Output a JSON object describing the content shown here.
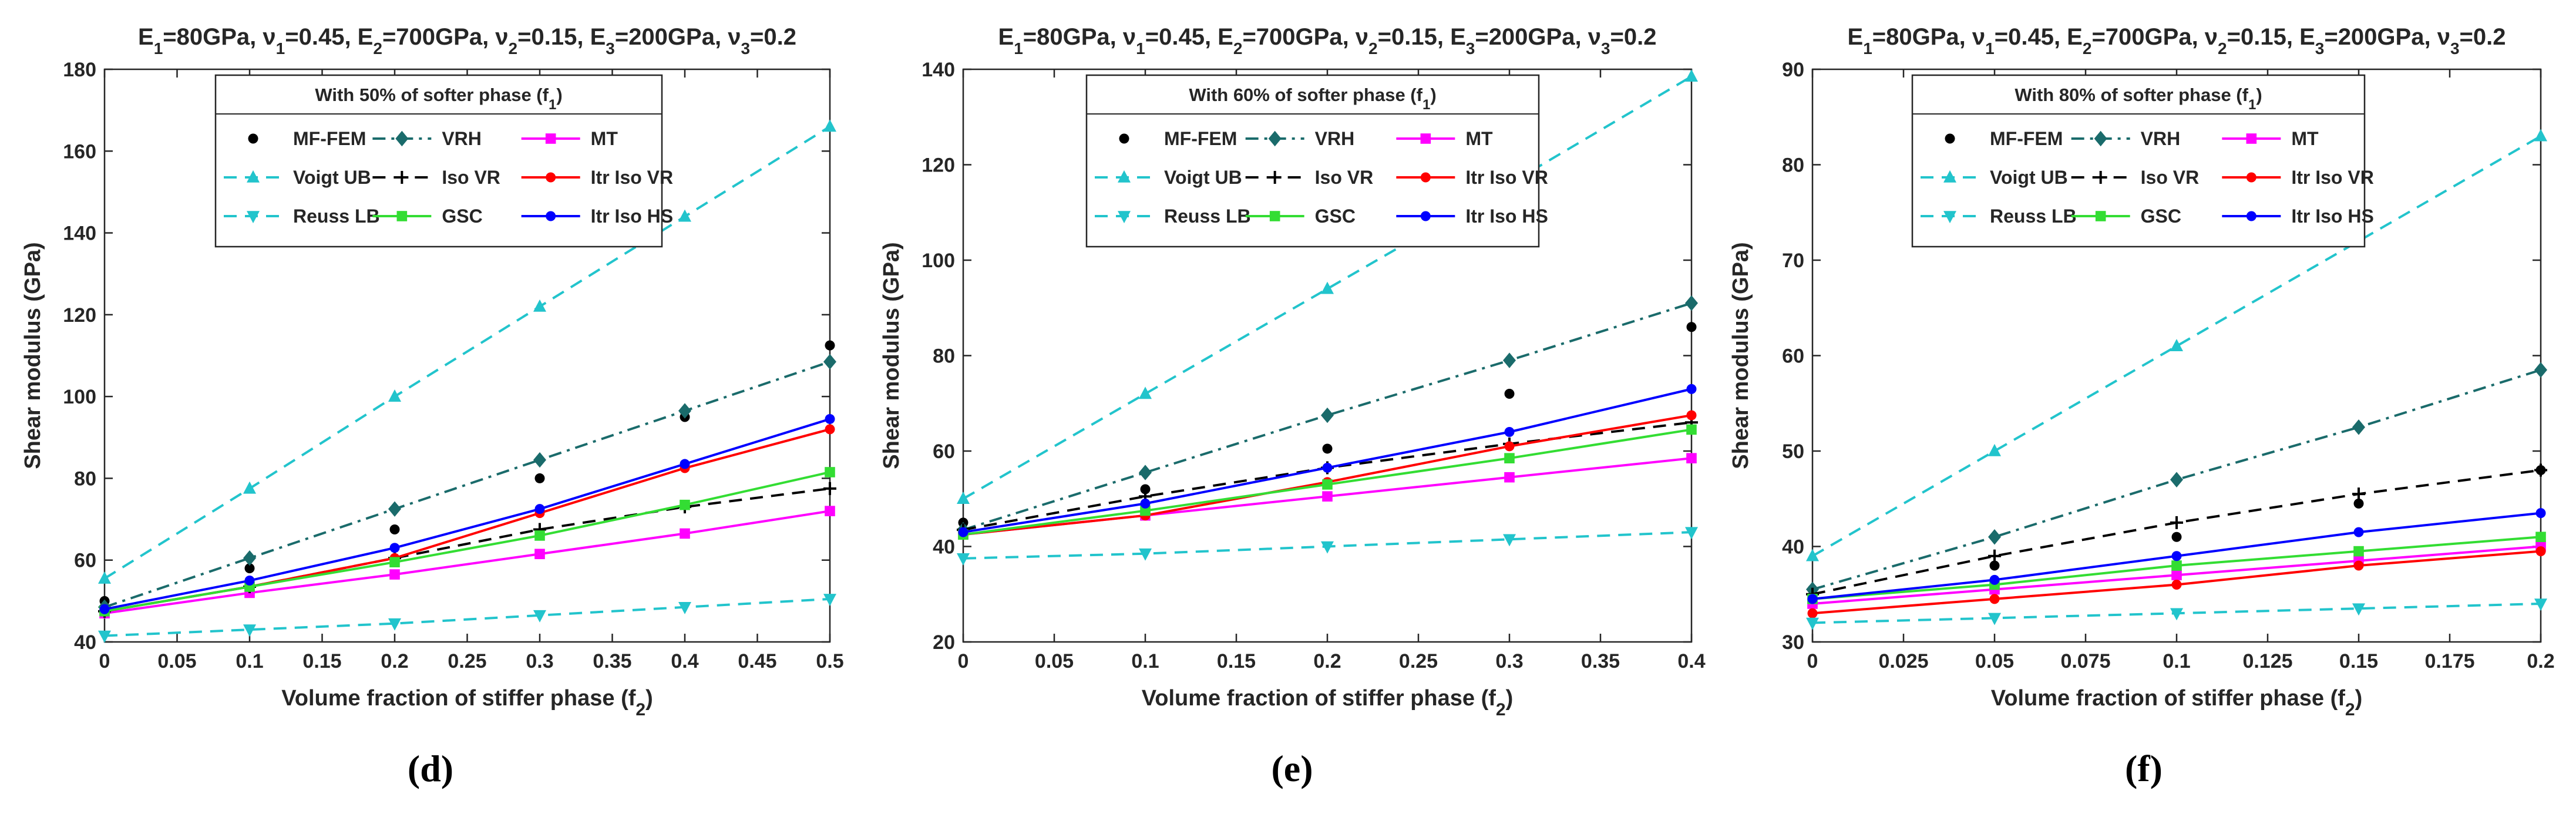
{
  "panel_labels": [
    "(d)",
    "(e)",
    "(f)"
  ],
  "chart_data": [
    {
      "type": "line",
      "panel_label": "(d)",
      "header": "E1=80GPa, ν1=0.45,  E2=700GPa, ν2=0.15,  E3=200GPa, ν3=0.2",
      "legend_title": "With 50% of softer phase (f1)",
      "xlabel": "Volume fraction of stiffer phase (f2)",
      "ylabel": "Shear modulus (GPa)",
      "xlim": [
        0,
        0.5
      ],
      "ylim": [
        40,
        180
      ],
      "xticks": [
        0,
        0.05,
        0.1,
        0.15,
        0.2,
        0.25,
        0.3,
        0.35,
        0.4,
        0.45,
        0.5
      ],
      "xtick_labels": [
        "0",
        "0.05",
        "0.1",
        "0.15",
        "0.2",
        "0.25",
        "0.3",
        "0.35",
        "0.4",
        "0.45",
        "0.5"
      ],
      "yticks": [
        40,
        60,
        80,
        100,
        120,
        140,
        160,
        180
      ],
      "ytick_labels": [
        "40",
        "60",
        "80",
        "100",
        "120",
        "140",
        "160",
        "180"
      ],
      "x": [
        0,
        0.1,
        0.2,
        0.3,
        0.4,
        0.5
      ],
      "series": [
        {
          "name": "MF-FEM",
          "values": [
            50,
            58,
            67.5,
            80,
            95,
            112.5
          ],
          "color": "#000000",
          "marker": "dot",
          "dash": "none"
        },
        {
          "name": "VRH",
          "values": [
            48.5,
            60.5,
            72.5,
            84.5,
            96.5,
            108.5
          ],
          "color": "#1a6b6b",
          "marker": "diamond",
          "dash": "dashdot"
        },
        {
          "name": "MT",
          "values": [
            47,
            52,
            56.5,
            61.5,
            66.5,
            72
          ],
          "color": "#ff00ff",
          "marker": "square",
          "dash": "none"
        },
        {
          "name": "Voigt UB",
          "values": [
            55.5,
            77.5,
            100,
            122,
            144,
            166
          ],
          "color": "#22c4cc",
          "marker": "tri-up",
          "dash": "dash"
        },
        {
          "name": "Iso VR",
          "values": [
            47.5,
            53.5,
            60.5,
            67.5,
            73,
            77.5
          ],
          "color": "#000000",
          "marker": "plus",
          "dash": "dash"
        },
        {
          "name": "Itr Iso VR",
          "values": [
            47.5,
            53.5,
            60.5,
            71.5,
            82.5,
            92
          ],
          "color": "#ff0000",
          "marker": "dot",
          "dash": "none"
        },
        {
          "name": "Reuss LB",
          "values": [
            41.5,
            43,
            44.5,
            46.5,
            48.5,
            50.5
          ],
          "color": "#22c4cc",
          "marker": "tri-down",
          "dash": "dash"
        },
        {
          "name": "GSC",
          "values": [
            47.5,
            53.5,
            59.5,
            66,
            73.5,
            81.5
          ],
          "color": "#33dd33",
          "marker": "square",
          "dash": "none"
        },
        {
          "name": "Itr Iso HS",
          "values": [
            48,
            55,
            63,
            72.5,
            83.5,
            94.5
          ],
          "color": "#0000ff",
          "marker": "dot",
          "dash": "none"
        }
      ]
    },
    {
      "type": "line",
      "panel_label": "(e)",
      "header": "E1=80GPa, ν1=0.45,  E2=700GPa, ν2=0.15,  E3=200GPa, ν3=0.2",
      "legend_title": "With 60% of softer phase (f1)",
      "xlabel": "Volume fraction of stiffer phase (f2)",
      "ylabel": "Shear modulus (GPa)",
      "xlim": [
        0,
        0.4
      ],
      "ylim": [
        20,
        140
      ],
      "xticks": [
        0,
        0.05,
        0.1,
        0.15,
        0.2,
        0.25,
        0.3,
        0.35,
        0.4
      ],
      "xtick_labels": [
        "0",
        "0.05",
        "0.1",
        "0.15",
        "0.2",
        "0.25",
        "0.3",
        "0.35",
        "0.4"
      ],
      "yticks": [
        20,
        40,
        60,
        80,
        100,
        120,
        140
      ],
      "ytick_labels": [
        "20",
        "40",
        "60",
        "80",
        "100",
        "120",
        "140"
      ],
      "x": [
        0,
        0.1,
        0.2,
        0.3,
        0.4
      ],
      "series": [
        {
          "name": "MF-FEM",
          "values": [
            45,
            52,
            60.5,
            72,
            86
          ],
          "color": "#000000",
          "marker": "dot",
          "dash": "none"
        },
        {
          "name": "VRH",
          "values": [
            43.5,
            55.5,
            67.5,
            79,
            91
          ],
          "color": "#1a6b6b",
          "marker": "diamond",
          "dash": "dashdot"
        },
        {
          "name": "MT",
          "values": [
            42.5,
            46.5,
            50.5,
            54.5,
            58.5
          ],
          "color": "#ff00ff",
          "marker": "square",
          "dash": "none"
        },
        {
          "name": "Voigt UB",
          "values": [
            50,
            72,
            94,
            116,
            138.5
          ],
          "color": "#22c4cc",
          "marker": "tri-up",
          "dash": "dash"
        },
        {
          "name": "Iso VR",
          "values": [
            43.5,
            50.5,
            56.5,
            61.5,
            66
          ],
          "color": "#000000",
          "marker": "plus",
          "dash": "dash"
        },
        {
          "name": "Itr Iso VR",
          "values": [
            42.5,
            46.5,
            53.5,
            61,
            67.5
          ],
          "color": "#ff0000",
          "marker": "dot",
          "dash": "none"
        },
        {
          "name": "Reuss LB",
          "values": [
            37.5,
            38.5,
            40,
            41.5,
            43
          ],
          "color": "#22c4cc",
          "marker": "tri-down",
          "dash": "dash"
        },
        {
          "name": "GSC",
          "values": [
            42.5,
            47.5,
            53,
            58.5,
            64.5
          ],
          "color": "#33dd33",
          "marker": "square",
          "dash": "none"
        },
        {
          "name": "Itr Iso HS",
          "values": [
            43,
            49,
            56.5,
            64,
            73
          ],
          "color": "#0000ff",
          "marker": "dot",
          "dash": "none"
        }
      ]
    },
    {
      "type": "line",
      "panel_label": "(f)",
      "header": "E1=80GPa, ν1=0.45,  E2=700GPa, ν2=0.15,  E3=200GPa, ν3=0.2",
      "legend_title": "With 80% of softer phase (f1)",
      "xlabel": "Volume fraction of stiffer phase (f2)",
      "ylabel": "Shear modulus (GPa)",
      "xlim": [
        0,
        0.2
      ],
      "ylim": [
        30,
        90
      ],
      "xticks": [
        0,
        0.025,
        0.05,
        0.075,
        0.1,
        0.125,
        0.15,
        0.175,
        0.2
      ],
      "xtick_labels": [
        "0",
        "0.025",
        "0.05",
        "0.075",
        "0.1",
        "0.125",
        "0.15",
        "0.175",
        "0.2"
      ],
      "yticks": [
        30,
        40,
        50,
        60,
        70,
        80,
        90
      ],
      "ytick_labels": [
        "30",
        "40",
        "50",
        "60",
        "70",
        "80",
        "90"
      ],
      "x": [
        0,
        0.05,
        0.1,
        0.15,
        0.2
      ],
      "series": [
        {
          "name": "MF-FEM",
          "values": [
            35.5,
            38,
            41,
            44.5,
            48
          ],
          "color": "#000000",
          "marker": "dot",
          "dash": "none"
        },
        {
          "name": "VRH",
          "values": [
            35.5,
            41,
            47,
            52.5,
            58.5
          ],
          "color": "#1a6b6b",
          "marker": "diamond",
          "dash": "dashdot"
        },
        {
          "name": "MT",
          "values": [
            34,
            35.5,
            37,
            38.5,
            40
          ],
          "color": "#ff00ff",
          "marker": "square",
          "dash": "none"
        },
        {
          "name": "Voigt UB",
          "values": [
            39,
            50,
            61,
            72,
            83
          ],
          "color": "#22c4cc",
          "marker": "tri-up",
          "dash": "dash"
        },
        {
          "name": "Iso VR",
          "values": [
            35,
            39,
            42.5,
            45.5,
            48
          ],
          "color": "#000000",
          "marker": "plus",
          "dash": "dash"
        },
        {
          "name": "Itr Iso VR",
          "values": [
            33,
            34.5,
            36,
            38,
            39.5
          ],
          "color": "#ff0000",
          "marker": "dot",
          "dash": "none"
        },
        {
          "name": "Reuss LB",
          "values": [
            32,
            32.5,
            33,
            33.5,
            34
          ],
          "color": "#22c4cc",
          "marker": "tri-down",
          "dash": "dash"
        },
        {
          "name": "GSC",
          "values": [
            34.5,
            36,
            38,
            39.5,
            41
          ],
          "color": "#33dd33",
          "marker": "square",
          "dash": "none"
        },
        {
          "name": "Itr Iso HS",
          "values": [
            34.5,
            36.5,
            39,
            41.5,
            43.5
          ],
          "color": "#0000ff",
          "marker": "dot",
          "dash": "none"
        }
      ]
    }
  ]
}
